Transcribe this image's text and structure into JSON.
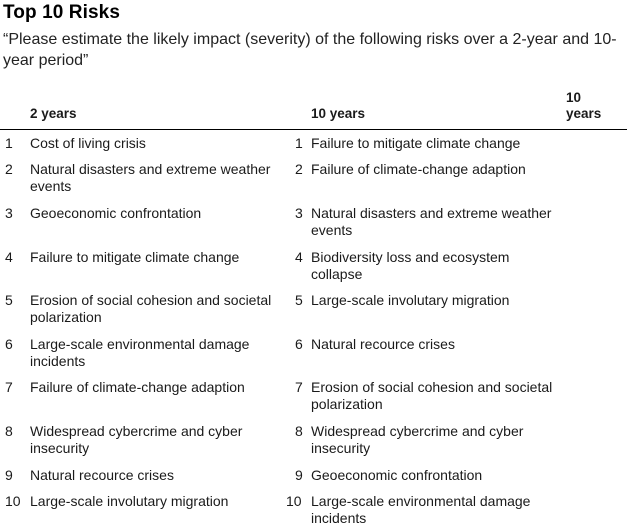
{
  "title": "Top 10 Risks",
  "subtitle": "“Please estimate the likely impact (severity) of the following risks over a 2-year and 10-year period”",
  "headers": {
    "two_years": "2 years",
    "ten_years": "10 years",
    "ten_years_col3": "10 years"
  },
  "rows": [
    {
      "rank": "1",
      "two_year": "Cost of living crisis",
      "ten_year": "Failure to mitigate climate change"
    },
    {
      "rank": "2",
      "two_year": "Natural disasters and extreme weather events",
      "ten_year": "Failure of climate-change adaption"
    },
    {
      "rank": "3",
      "two_year": "Geoeconomic confrontation",
      "ten_year": "Natural disasters and extreme weather events"
    },
    {
      "rank": "4",
      "two_year": "Failure to mitigate climate change",
      "ten_year": "Biodiversity loss and ecosystem collapse"
    },
    {
      "rank": "5",
      "two_year": "Erosion of social cohesion and societal polarization",
      "ten_year": "Large-scale involutary migration"
    },
    {
      "rank": "6",
      "two_year": "Large-scale environmental damage incidents",
      "ten_year": "Natural recource crises"
    },
    {
      "rank": "7",
      "two_year": "Failure of climate-change adaption",
      "ten_year": "Erosion of social cohesion and societal polarization"
    },
    {
      "rank": "8",
      "two_year": "Widespread cybercrime and cyber insecurity",
      "ten_year": "Widespread cybercrime and cyber insecurity"
    },
    {
      "rank": "9",
      "two_year": "Natural recource crises",
      "ten_year": "Geoeconomic confrontation"
    },
    {
      "rank": "10",
      "two_year": "Large-scale involutary migration",
      "ten_year": "Large-scale environmental damage incidents"
    }
  ]
}
